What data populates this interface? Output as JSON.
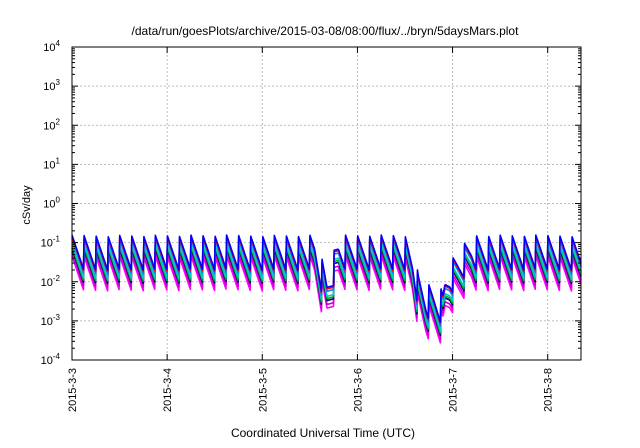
{
  "chart_data": {
    "type": "line",
    "title": "/data/run/goesPlots/archive/2015-03-08/08:00/flux/../bryn/5daysMars.plot",
    "xlabel": "Coordinated Universal Time (UTC)",
    "ylabel": "cSv/day",
    "y_scale": "log",
    "ylim": [
      0.0001,
      10000
    ],
    "y_ticks": [
      {
        "base": "10",
        "exp": "-4",
        "value": 0.0001
      },
      {
        "base": "10",
        "exp": "-3",
        "value": 0.001
      },
      {
        "base": "10",
        "exp": "-2",
        "value": 0.01
      },
      {
        "base": "10",
        "exp": "-1",
        "value": 0.1
      },
      {
        "base": "10",
        "exp": "0",
        "value": 1
      },
      {
        "base": "10",
        "exp": "1",
        "value": 10
      },
      {
        "base": "10",
        "exp": "2",
        "value": 100
      },
      {
        "base": "10",
        "exp": "3",
        "value": 1000
      },
      {
        "base": "10",
        "exp": "4",
        "value": 10000
      }
    ],
    "x_ticks": [
      "2015-3-3",
      "2015-3-4",
      "2015-3-5",
      "2015-3-6",
      "2015-3-7",
      "2015-3-8"
    ],
    "x_tick_days": [
      0,
      1,
      2,
      3,
      4,
      5
    ],
    "xlim_days": [
      0,
      5.35
    ],
    "grid": true,
    "legend": "none",
    "envelope_days": [
      0,
      2.55,
      2.62,
      2.68,
      2.8,
      3.5,
      3.58,
      3.64,
      3.72,
      3.8,
      3.9,
      3.92,
      3.97,
      4.2,
      5.35
    ],
    "envelope_values": [
      0.035,
      0.035,
      0.01,
      0.004,
      0.035,
      0.035,
      0.018,
      0.004,
      0.002,
      0.0018,
      0.0015,
      0.004,
      0.008,
      0.035,
      0.035
    ],
    "pulse_period_days": 0.125,
    "series": [
      {
        "color": "#ff00ff",
        "factor": 0.5
      },
      {
        "color": "#cc00cc",
        "factor": 0.62
      },
      {
        "color": "#000080",
        "factor": 0.78
      },
      {
        "color": "#00aa00",
        "factor": 0.88
      },
      {
        "color": "#00c8c8",
        "factor": 1.0
      },
      {
        "color": "#0080ff",
        "factor": 1.35
      },
      {
        "color": "#ff0000",
        "factor": 1.55
      },
      {
        "color": "#0000ff",
        "factor": 1.7
      }
    ]
  }
}
